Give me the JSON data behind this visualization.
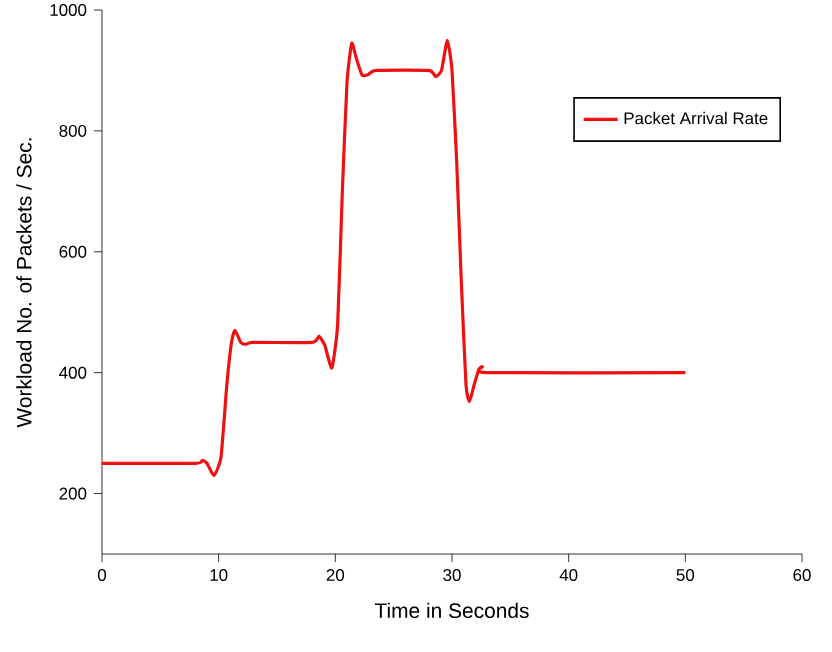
{
  "chart_data": {
    "type": "line",
    "xlabel": "Time in Seconds",
    "ylabel": "Workload No. of Packets / Sec.",
    "xlim": [
      0,
      60
    ],
    "ylim": [
      100,
      1000
    ],
    "xticks": [
      0,
      10,
      20,
      30,
      40,
      50,
      60
    ],
    "yticks": [
      200,
      400,
      600,
      800,
      1000
    ],
    "grid": false,
    "legend": "top right",
    "marker": "none",
    "line_style": "solid",
    "series": [
      {
        "name": "Packet Arrival Rate",
        "color": "#ee1111",
        "x": [
          0,
          8,
          8.6,
          9,
          9.6,
          10.2,
          10.7,
          11.1,
          11.4,
          11.9,
          12.3,
          13,
          18,
          18.6,
          19.1,
          19.7,
          20.2,
          20.6,
          21,
          21.4,
          21.8,
          22.3,
          22.8,
          23.5,
          28,
          28.6,
          29.1,
          29.6,
          30,
          30.4,
          30.8,
          31.2,
          31.5,
          31.9,
          32.3,
          32.6,
          33,
          50
        ],
        "values": [
          250,
          250,
          255,
          250,
          230,
          260,
          380,
          450,
          470,
          450,
          447,
          450,
          450,
          460,
          445,
          408,
          480,
          700,
          880,
          945,
          920,
          892,
          893,
          900,
          900,
          890,
          900,
          950,
          900,
          750,
          550,
          380,
          352,
          380,
          405,
          410,
          400,
          400
        ]
      }
    ]
  }
}
